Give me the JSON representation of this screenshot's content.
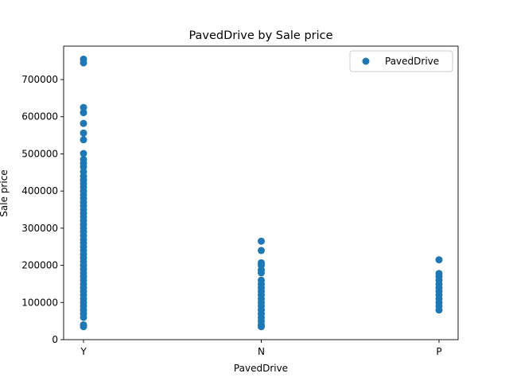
{
  "chart_data": {
    "type": "scatter",
    "title": "PavedDrive by Sale price",
    "xlabel": "PavedDrive",
    "ylabel": "Sale price",
    "categories": [
      "Y",
      "N",
      "P"
    ],
    "ylim": [
      0,
      790000
    ],
    "yticks": [
      {
        "value": 0,
        "label": "0"
      },
      {
        "value": 100000,
        "label": "100000"
      },
      {
        "value": 200000,
        "label": "200000"
      },
      {
        "value": 300000,
        "label": "300000"
      },
      {
        "value": 400000,
        "label": "400000"
      },
      {
        "value": 500000,
        "label": "500000"
      },
      {
        "value": 600000,
        "label": "600000"
      },
      {
        "value": 700000,
        "label": "700000"
      }
    ],
    "grid": false,
    "legend_position": "top-right",
    "series": [
      {
        "name": "PavedDrive",
        "color": "#1f77b4",
        "points": [
          {
            "x": "Y",
            "y": 755000
          },
          {
            "x": "Y",
            "y": 745000
          },
          {
            "x": "Y",
            "y": 625000
          },
          {
            "x": "Y",
            "y": 611000
          },
          {
            "x": "Y",
            "y": 582000
          },
          {
            "x": "Y",
            "y": 556000
          },
          {
            "x": "Y",
            "y": 538000
          },
          {
            "x": "Y",
            "y": 501000
          },
          {
            "x": "Y",
            "y": 485000
          },
          {
            "x": "Y",
            "y": 475000
          },
          {
            "x": "Y",
            "y": 465000
          },
          {
            "x": "Y",
            "y": 452000
          },
          {
            "x": "Y",
            "y": 440000
          },
          {
            "x": "Y",
            "y": 430000
          },
          {
            "x": "Y",
            "y": 420000
          },
          {
            "x": "Y",
            "y": 410000
          },
          {
            "x": "Y",
            "y": 400000
          },
          {
            "x": "Y",
            "y": 390000
          },
          {
            "x": "Y",
            "y": 380000
          },
          {
            "x": "Y",
            "y": 370000
          },
          {
            "x": "Y",
            "y": 360000
          },
          {
            "x": "Y",
            "y": 350000
          },
          {
            "x": "Y",
            "y": 340000
          },
          {
            "x": "Y",
            "y": 330000
          },
          {
            "x": "Y",
            "y": 320000
          },
          {
            "x": "Y",
            "y": 310000
          },
          {
            "x": "Y",
            "y": 300000
          },
          {
            "x": "Y",
            "y": 290000
          },
          {
            "x": "Y",
            "y": 280000
          },
          {
            "x": "Y",
            "y": 270000
          },
          {
            "x": "Y",
            "y": 260000
          },
          {
            "x": "Y",
            "y": 250000
          },
          {
            "x": "Y",
            "y": 240000
          },
          {
            "x": "Y",
            "y": 230000
          },
          {
            "x": "Y",
            "y": 220000
          },
          {
            "x": "Y",
            "y": 210000
          },
          {
            "x": "Y",
            "y": 200000
          },
          {
            "x": "Y",
            "y": 190000
          },
          {
            "x": "Y",
            "y": 180000
          },
          {
            "x": "Y",
            "y": 170000
          },
          {
            "x": "Y",
            "y": 160000
          },
          {
            "x": "Y",
            "y": 150000
          },
          {
            "x": "Y",
            "y": 140000
          },
          {
            "x": "Y",
            "y": 130000
          },
          {
            "x": "Y",
            "y": 120000
          },
          {
            "x": "Y",
            "y": 110000
          },
          {
            "x": "Y",
            "y": 100000
          },
          {
            "x": "Y",
            "y": 90000
          },
          {
            "x": "Y",
            "y": 80000
          },
          {
            "x": "Y",
            "y": 70000
          },
          {
            "x": "Y",
            "y": 60000
          },
          {
            "x": "Y",
            "y": 40000
          },
          {
            "x": "Y",
            "y": 35000
          },
          {
            "x": "N",
            "y": 265000
          },
          {
            "x": "N",
            "y": 240000
          },
          {
            "x": "N",
            "y": 207000
          },
          {
            "x": "N",
            "y": 200000
          },
          {
            "x": "N",
            "y": 188000
          },
          {
            "x": "N",
            "y": 180000
          },
          {
            "x": "N",
            "y": 160000
          },
          {
            "x": "N",
            "y": 150000
          },
          {
            "x": "N",
            "y": 140000
          },
          {
            "x": "N",
            "y": 130000
          },
          {
            "x": "N",
            "y": 120000
          },
          {
            "x": "N",
            "y": 110000
          },
          {
            "x": "N",
            "y": 100000
          },
          {
            "x": "N",
            "y": 90000
          },
          {
            "x": "N",
            "y": 80000
          },
          {
            "x": "N",
            "y": 70000
          },
          {
            "x": "N",
            "y": 60000
          },
          {
            "x": "N",
            "y": 50000
          },
          {
            "x": "N",
            "y": 40000
          },
          {
            "x": "N",
            "y": 35000
          },
          {
            "x": "P",
            "y": 215000
          },
          {
            "x": "P",
            "y": 178000
          },
          {
            "x": "P",
            "y": 170000
          },
          {
            "x": "P",
            "y": 160000
          },
          {
            "x": "P",
            "y": 150000
          },
          {
            "x": "P",
            "y": 140000
          },
          {
            "x": "P",
            "y": 130000
          },
          {
            "x": "P",
            "y": 120000
          },
          {
            "x": "P",
            "y": 110000
          },
          {
            "x": "P",
            "y": 100000
          },
          {
            "x": "P",
            "y": 90000
          },
          {
            "x": "P",
            "y": 80000
          }
        ]
      }
    ]
  }
}
